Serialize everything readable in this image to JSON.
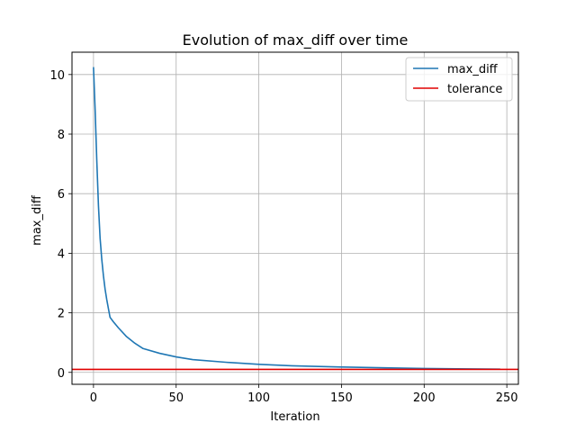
{
  "chart_data": {
    "type": "line",
    "title": "Evolution of max_diff over time",
    "xlabel": "Iteration",
    "ylabel": "max_diff",
    "xlim": [
      -13,
      257
    ],
    "ylim": [
      -0.4,
      10.75
    ],
    "xticks": [
      0,
      50,
      100,
      150,
      200,
      250
    ],
    "yticks": [
      0,
      2,
      4,
      6,
      8,
      10
    ],
    "grid": true,
    "legend_position": "top-right",
    "series": [
      {
        "name": "max_diff",
        "color": "#1f77b4",
        "x": [
          0,
          1,
          2,
          3,
          4,
          5,
          6,
          7,
          8,
          9,
          10,
          12,
          15,
          20,
          25,
          30,
          40,
          50,
          60,
          80,
          100,
          120,
          150,
          180,
          200,
          220,
          246
        ],
        "y": [
          10.25,
          8.8,
          7.1,
          5.6,
          4.5,
          3.8,
          3.25,
          2.8,
          2.45,
          2.15,
          1.85,
          1.7,
          1.5,
          1.2,
          0.98,
          0.8,
          0.64,
          0.52,
          0.43,
          0.34,
          0.27,
          0.22,
          0.18,
          0.15,
          0.13,
          0.12,
          0.11
        ]
      },
      {
        "name": "tolerance",
        "color": "#e00000",
        "type": "hline",
        "y": 0.1
      }
    ]
  }
}
